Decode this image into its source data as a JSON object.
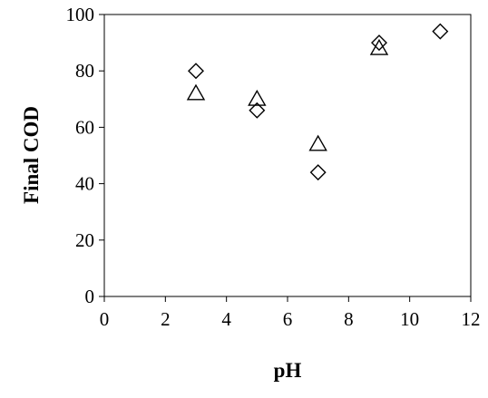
{
  "chart_data": {
    "type": "scatter",
    "xlabel": "pH",
    "ylabel": "Final COD",
    "xlim": [
      0,
      12
    ],
    "ylim": [
      0,
      100
    ],
    "x_ticks": [
      0,
      2,
      4,
      6,
      8,
      10,
      12
    ],
    "y_ticks": [
      0,
      20,
      40,
      60,
      80,
      100
    ],
    "grid": false,
    "legend": "none",
    "series": [
      {
        "marker": "diamond",
        "x": [
          3,
          5,
          7,
          9,
          11
        ],
        "y": [
          80,
          66,
          44,
          90,
          94
        ]
      },
      {
        "marker": "triangle",
        "x": [
          3,
          5,
          7,
          9
        ],
        "y": [
          72,
          70,
          54,
          88
        ]
      }
    ]
  }
}
